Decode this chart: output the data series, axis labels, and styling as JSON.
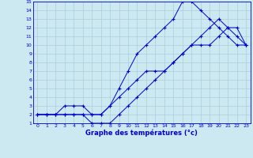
{
  "bg_color": "#cce8f0",
  "line_color": "#0000cc",
  "grid_color": "#aaccdd",
  "xlabel": "Graphe des températures (°c)",
  "xlim": [
    -0.5,
    23.5
  ],
  "ylim": [
    1,
    15
  ],
  "xticks": [
    0,
    1,
    2,
    3,
    4,
    5,
    6,
    7,
    8,
    9,
    10,
    11,
    12,
    13,
    14,
    15,
    16,
    17,
    18,
    19,
    20,
    21,
    22,
    23
  ],
  "yticks": [
    1,
    2,
    3,
    4,
    5,
    6,
    7,
    8,
    9,
    10,
    11,
    12,
    13,
    14,
    15
  ],
  "line1_x": [
    0,
    1,
    2,
    3,
    4,
    5,
    6,
    7,
    8,
    9,
    10,
    11,
    12,
    13,
    14,
    15,
    16,
    17,
    18,
    19,
    20,
    21,
    22,
    23
  ],
  "line1_y": [
    2,
    2,
    2,
    2,
    2,
    2,
    1,
    1,
    1,
    2,
    3,
    4,
    5,
    6,
    7,
    8,
    9,
    10,
    11,
    12,
    13,
    12,
    11,
    10
  ],
  "line2_x": [
    0,
    1,
    2,
    3,
    4,
    5,
    6,
    7,
    8,
    9,
    10,
    11,
    12,
    13,
    14,
    15,
    16,
    17,
    18,
    19,
    20,
    21,
    22,
    23
  ],
  "line2_y": [
    2,
    2,
    2,
    2,
    2,
    2,
    2,
    2,
    3,
    5,
    7,
    9,
    10,
    11,
    12,
    13,
    15,
    15,
    14,
    13,
    12,
    11,
    10,
    10
  ],
  "line3_x": [
    0,
    1,
    2,
    3,
    4,
    5,
    6,
    7,
    8,
    9,
    10,
    11,
    12,
    13,
    14,
    15,
    16,
    17,
    18,
    19,
    20,
    21,
    22,
    23
  ],
  "line3_y": [
    2,
    2,
    2,
    3,
    3,
    3,
    2,
    2,
    3,
    4,
    5,
    6,
    7,
    7,
    7,
    8,
    9,
    10,
    10,
    10,
    11,
    12,
    12,
    10
  ]
}
